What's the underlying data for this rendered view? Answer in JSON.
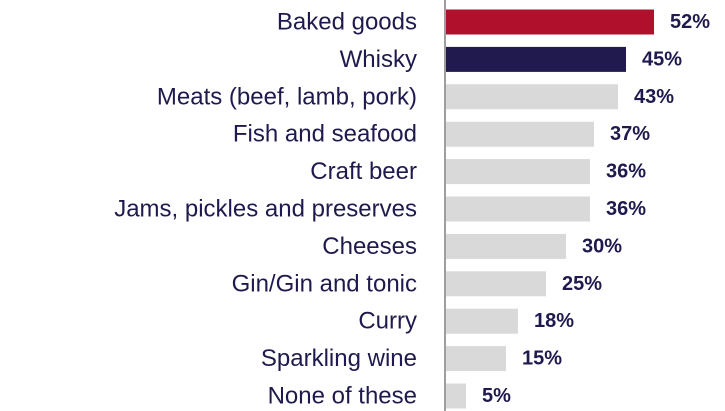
{
  "chart_data": {
    "type": "bar",
    "orientation": "horizontal",
    "categories": [
      "Baked goods",
      "Whisky",
      "Meats (beef, lamb, pork)",
      "Fish and seafood",
      "Craft beer",
      "Jams, pickles and preserves",
      "Cheeses",
      "Gin/Gin and tonic",
      "Curry",
      "Sparkling wine",
      "None of these"
    ],
    "values": [
      52,
      45,
      43,
      37,
      36,
      36,
      30,
      25,
      18,
      15,
      5
    ],
    "value_labels": [
      "52%",
      "45%",
      "43%",
      "37%",
      "36%",
      "36%",
      "30%",
      "25%",
      "18%",
      "15%",
      "5%"
    ],
    "unit": "%",
    "xlim": [
      0,
      60
    ],
    "grid": false,
    "legend": "none",
    "colors": {
      "highlight_1": "#b0102b",
      "highlight_2": "#201a4e",
      "default_bar": "#d9d9d9",
      "category_text": "#1f1a4d",
      "value_text": "#1f1a4d",
      "axis_line": "#7f7f7f"
    },
    "bar_colors": [
      "#b0102b",
      "#201a4e",
      "#d9d9d9",
      "#d9d9d9",
      "#d9d9d9",
      "#d9d9d9",
      "#d9d9d9",
      "#d9d9d9",
      "#d9d9d9",
      "#d9d9d9",
      "#d9d9d9"
    ]
  }
}
